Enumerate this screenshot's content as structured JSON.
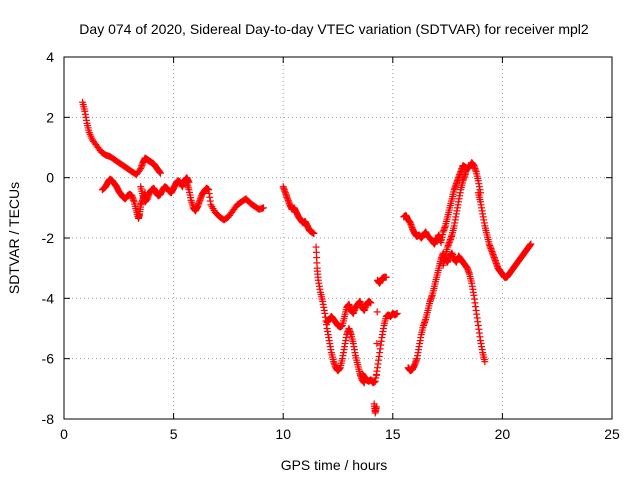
{
  "chart_data": {
    "type": "scatter",
    "title": "Day 074 of 2020, Sidereal Day-to-day VTEC variation (SDTVAR) for receiver mpl2",
    "xlabel": "GPS time / hours",
    "ylabel": "SDTVAR / TECUs",
    "xlim": [
      0,
      25
    ],
    "ylim": [
      -8,
      4
    ],
    "x_ticks": [
      0,
      5,
      10,
      15,
      20,
      25
    ],
    "y_ticks": [
      -8,
      -6,
      -4,
      -2,
      0,
      2,
      4
    ],
    "x_tick_labels": [
      "0",
      "5",
      "10",
      "15",
      "20",
      "25"
    ],
    "y_tick_labels": [
      "-8",
      "-6",
      "-4",
      "-2",
      "0",
      "2",
      "4"
    ],
    "grid": true,
    "marker": "+",
    "color": "#ff0000",
    "series": [
      {
        "x": [
          0.85,
          0.95,
          1.05,
          1.15,
          1.3,
          1.5,
          1.7,
          1.9,
          2.1,
          2.3,
          2.5,
          2.7,
          2.9,
          3.1,
          3.3,
          3.5,
          3.6,
          3.7,
          3.8,
          3.9,
          4.0,
          4.1,
          4.2,
          4.3,
          4.4
        ],
        "y": [
          2.5,
          2.2,
          1.8,
          1.5,
          1.25,
          1.05,
          0.85,
          0.75,
          0.7,
          0.6,
          0.5,
          0.4,
          0.3,
          0.2,
          0.1,
          0.3,
          0.5,
          0.65,
          0.6,
          0.55,
          0.5,
          0.45,
          0.35,
          0.25,
          0.15
        ]
      },
      {
        "x": [
          1.75,
          1.9,
          2.0,
          2.1,
          2.2,
          2.3,
          2.4,
          2.5,
          2.6,
          2.7,
          2.8,
          2.9,
          3.0,
          3.1,
          3.2,
          3.3,
          3.4,
          3.45,
          3.5,
          3.6,
          3.7
        ],
        "y": [
          -0.4,
          -0.3,
          -0.15,
          -0.05,
          -0.1,
          -0.2,
          -0.3,
          -0.45,
          -0.55,
          -0.65,
          -0.7,
          -0.6,
          -0.55,
          -0.6,
          -0.8,
          -1.1,
          -1.35,
          -1.2,
          -0.9,
          -0.7,
          -0.5
        ]
      },
      {
        "x": [
          3.5,
          3.6,
          3.7,
          3.8,
          3.9,
          4.0,
          4.1,
          4.2,
          4.3,
          4.4,
          4.5,
          4.6,
          4.7,
          4.8,
          4.9,
          5.0,
          5.1,
          5.2,
          5.3,
          5.4,
          5.5,
          5.6,
          5.7
        ],
        "y": [
          -0.3,
          -0.6,
          -0.8,
          -0.7,
          -0.5,
          -0.4,
          -0.35,
          -0.5,
          -0.6,
          -0.55,
          -0.4,
          -0.3,
          -0.35,
          -0.45,
          -0.5,
          -0.35,
          -0.2,
          -0.1,
          -0.15,
          -0.3,
          -0.1,
          0.0,
          -0.15
        ]
      },
      {
        "x": [
          5.6,
          5.7,
          5.8,
          5.9,
          6.0,
          6.1,
          6.2,
          6.3,
          6.4,
          6.5,
          6.6,
          6.7,
          6.9,
          7.1,
          7.3,
          7.5,
          7.7,
          7.9,
          8.1,
          8.3,
          8.5,
          8.7,
          8.9,
          9.1
        ],
        "y": [
          -0.15,
          -0.4,
          -0.75,
          -1.0,
          -1.1,
          -0.95,
          -0.75,
          -0.55,
          -0.45,
          -0.35,
          -0.4,
          -0.9,
          -1.15,
          -1.3,
          -1.4,
          -1.3,
          -1.1,
          -0.9,
          -0.8,
          -0.7,
          -0.85,
          -0.95,
          -1.05,
          -1.0
        ]
      },
      {
        "x": [
          10.0,
          10.1,
          10.2,
          10.3,
          10.4,
          10.5,
          10.6,
          10.7,
          10.8,
          10.9,
          11.0,
          11.1,
          11.2,
          11.3,
          11.4
        ],
        "y": [
          -0.3,
          -0.5,
          -0.7,
          -0.9,
          -1.05,
          -1.0,
          -1.15,
          -1.3,
          -1.4,
          -1.5,
          -1.45,
          -1.6,
          -1.75,
          -1.8,
          -1.85
        ]
      },
      {
        "x": [
          11.5,
          11.55,
          11.6,
          11.7,
          11.8,
          11.9,
          12.0,
          12.1,
          12.2,
          12.3,
          12.4,
          12.5,
          12.6,
          12.7,
          12.8,
          12.9,
          13.0,
          13.1,
          13.2,
          13.3,
          13.4,
          13.5,
          13.6,
          13.7
        ],
        "y": [
          -2.3,
          -3.0,
          -3.4,
          -3.8,
          -4.1,
          -4.5,
          -5.0,
          -5.4,
          -5.8,
          -6.1,
          -6.3,
          -6.4,
          -6.3,
          -6.0,
          -5.6,
          -5.2,
          -5.0,
          -5.2,
          -5.5,
          -5.9,
          -6.2,
          -6.5,
          -6.7,
          -6.8
        ]
      },
      {
        "x": [
          12.0,
          12.1,
          12.2,
          12.3,
          12.4,
          12.5,
          12.6,
          12.7,
          12.8,
          12.9,
          13.0,
          13.1,
          13.2,
          13.3,
          13.4,
          13.5,
          13.6,
          13.7,
          13.8,
          13.9,
          14.0
        ],
        "y": [
          -4.8,
          -4.7,
          -4.6,
          -4.7,
          -4.8,
          -4.9,
          -4.95,
          -4.9,
          -4.6,
          -4.3,
          -4.2,
          -4.4,
          -4.5,
          -4.3,
          -4.2,
          -4.1,
          -4.3,
          -4.4,
          -4.2,
          -4.1,
          -4.15
        ]
      },
      {
        "x": [
          13.6,
          13.7,
          13.8,
          13.9,
          14.0,
          14.1,
          14.2,
          14.3,
          14.4,
          14.5,
          14.6,
          14.7,
          14.8,
          14.9,
          15.0,
          15.1,
          15.2
        ],
        "y": [
          -6.5,
          -6.6,
          -6.7,
          -6.75,
          -6.7,
          -6.8,
          -6.75,
          -6.3,
          -5.8,
          -5.3,
          -4.9,
          -4.6,
          -4.55,
          -4.6,
          -4.5,
          -4.55,
          -4.5
        ]
      },
      {
        "x": [
          14.15,
          14.2,
          14.25,
          14.3,
          14.4,
          14.5,
          14.6,
          14.7
        ],
        "y": [
          -7.5,
          -7.8,
          -7.6,
          -3.4,
          -3.5,
          -3.35,
          -3.3,
          -3.3
        ]
      },
      {
        "x": [
          15.5,
          15.6,
          15.7,
          15.8,
          15.9,
          16.0,
          16.1,
          16.2,
          16.3,
          16.4,
          16.5,
          16.6,
          16.7,
          16.8,
          16.9,
          17.0,
          17.1,
          17.2,
          17.3,
          17.4,
          17.5,
          17.6,
          17.7,
          17.8,
          17.9,
          18.0,
          18.1,
          18.2,
          18.3,
          18.4,
          18.5,
          18.6,
          18.7,
          18.8,
          18.9,
          19.0
        ],
        "y": [
          -1.3,
          -1.25,
          -1.4,
          -1.5,
          -1.7,
          -1.85,
          -1.95,
          -1.9,
          -2.0,
          -1.9,
          -1.8,
          -1.95,
          -2.0,
          -2.1,
          -2.2,
          -2.05,
          -1.9,
          -2.15,
          -1.8,
          -1.6,
          -1.3,
          -1.0,
          -0.7,
          -0.4,
          -0.2,
          0.0,
          0.2,
          0.4,
          0.35,
          0.3,
          0.35,
          0.5,
          0.4,
          0.2,
          -0.1,
          -0.5
        ]
      },
      {
        "x": [
          15.7,
          15.8,
          15.9,
          16.0,
          16.1,
          16.2,
          16.3,
          16.4,
          16.5,
          16.6,
          16.7,
          16.8,
          16.9,
          17.0,
          17.1,
          17.2,
          17.3,
          17.4,
          17.5,
          17.6,
          17.7,
          17.8,
          17.9,
          18.0,
          18.1,
          18.2,
          18.3,
          18.4,
          18.5,
          18.6,
          18.7,
          18.8,
          18.9,
          19.0,
          19.1,
          19.2
        ],
        "y": [
          -6.3,
          -6.4,
          -6.35,
          -6.2,
          -6.0,
          -5.6,
          -5.2,
          -4.9,
          -4.7,
          -4.4,
          -4.1,
          -3.9,
          -3.6,
          -3.3,
          -3.0,
          -2.7,
          -2.5,
          -2.7,
          -2.8,
          -2.6,
          -2.5,
          -2.7,
          -2.8,
          -2.6,
          -2.7,
          -2.8,
          -2.9,
          -3.0,
          -3.2,
          -3.5,
          -3.9,
          -4.4,
          -4.9,
          -5.4,
          -5.8,
          -6.1
        ]
      },
      {
        "x": [
          17.3,
          17.4,
          17.5,
          17.6,
          17.7,
          17.8,
          17.9,
          18.0,
          18.1,
          18.2,
          18.3,
          18.35
        ],
        "y": [
          -2.9,
          -2.6,
          -2.3,
          -2.1,
          -1.9,
          -1.6,
          -1.2,
          -0.8,
          -0.4,
          -0.1,
          0.1,
          0.3
        ]
      },
      {
        "x": [
          18.9,
          19.0,
          19.1,
          19.2,
          19.3,
          19.4,
          19.5,
          19.6,
          19.7,
          19.8,
          19.9,
          20.0,
          20.1,
          20.2,
          20.3,
          20.4,
          20.5,
          20.6,
          20.7,
          20.8,
          20.9,
          21.0,
          21.1,
          21.2,
          21.3
        ],
        "y": [
          -0.5,
          -0.8,
          -1.2,
          -1.6,
          -1.9,
          -2.2,
          -2.4,
          -2.6,
          -2.8,
          -3.0,
          -3.1,
          -3.2,
          -3.3,
          -3.3,
          -3.2,
          -3.1,
          -3.0,
          -2.9,
          -2.8,
          -2.7,
          -2.6,
          -2.5,
          -2.4,
          -2.3,
          -2.2
        ]
      }
    ]
  }
}
